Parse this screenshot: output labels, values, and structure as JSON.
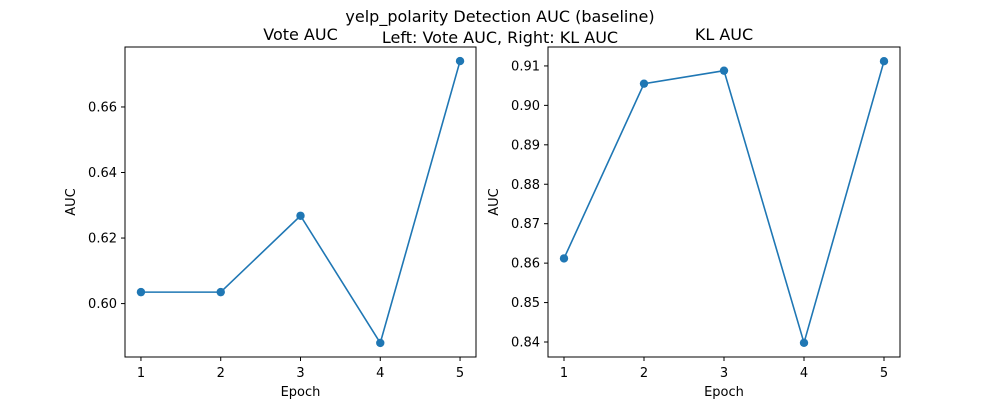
{
  "figure": {
    "title_line1": "yelp_polarity Detection AUC (baseline)",
    "title_line2": "Left: Vote AUC, Right: KL AUC"
  },
  "chart_data": [
    {
      "type": "line",
      "title": "Vote AUC",
      "xlabel": "Epoch",
      "ylabel": "AUC",
      "x": [
        1,
        2,
        3,
        4,
        5
      ],
      "values": [
        0.6035,
        0.6035,
        0.6268,
        0.588,
        0.674
      ],
      "xticks": [
        "1",
        "2",
        "3",
        "4",
        "5"
      ],
      "yticks": [
        "0.60",
        "0.62",
        "0.64",
        "0.66"
      ],
      "ytick_values": [
        0.6,
        0.62,
        0.64,
        0.66
      ],
      "xlim": [
        0.8,
        5.2
      ],
      "ylim": [
        0.5837,
        0.6783
      ],
      "grid": false,
      "color": "#1f77b4"
    },
    {
      "type": "line",
      "title": "KL AUC",
      "xlabel": "Epoch",
      "ylabel": "AUC",
      "x": [
        1,
        2,
        3,
        4,
        5
      ],
      "values": [
        0.8612,
        0.9055,
        0.9088,
        0.8398,
        0.9112
      ],
      "xticks": [
        "1",
        "2",
        "3",
        "4",
        "5"
      ],
      "yticks": [
        "0.84",
        "0.85",
        "0.86",
        "0.87",
        "0.88",
        "0.89",
        "0.90",
        "0.91"
      ],
      "ytick_values": [
        0.84,
        0.85,
        0.86,
        0.87,
        0.88,
        0.89,
        0.9,
        0.91
      ],
      "xlim": [
        0.8,
        5.2
      ],
      "ylim": [
        0.8362,
        0.9148
      ],
      "grid": false,
      "color": "#1f77b4"
    }
  ]
}
